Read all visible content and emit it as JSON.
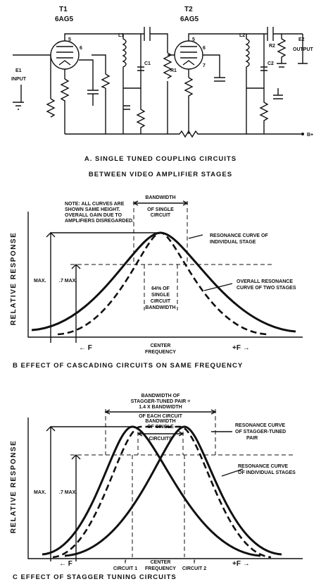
{
  "part_a": {
    "tube_1": {
      "name": "T1",
      "type": "6AG5"
    },
    "tube_2": {
      "name": "T2",
      "type": "6AG5"
    },
    "components": [
      "L1",
      "C1",
      "R1",
      "L2",
      "C2",
      "R2"
    ],
    "input": [
      "E1",
      "INPUT"
    ],
    "output": [
      "E2",
      "OUTPUT"
    ],
    "supply": "B+",
    "pins": [
      "5",
      "6",
      "5",
      "6",
      "7"
    ],
    "caption": [
      "A. SINGLE TUNED COUPLING CIRCUITS",
      "BETWEEN VIDEO AMPLIFIER STAGES"
    ]
  },
  "part_b": {
    "note": [
      "NOTE: ALL CURVES ARE",
      "SHOWN SAME HEIGHT.",
      "OVERALL GAIN DUE TO",
      "AMPLIFIERS DISREGARDED."
    ],
    "bandwidth_label": [
      "BANDWIDTH",
      "OF SINGLE",
      "CIRCUIT"
    ],
    "individual_label": [
      "RESONANCE CURVE OF",
      "INDIVIDUAL STAGE"
    ],
    "overall_label": [
      "OVERALL RESONANCE",
      "CURVE OF TWO STAGES"
    ],
    "percent_label": [
      "64% OF",
      "SINGLE",
      "CIRCUIT",
      "BANDWIDTH"
    ],
    "y_axis": "RELATIVE RESPONSE",
    "max": "MAX.",
    "seven_max": ".7 MAX.",
    "minus_f": "← F",
    "center": [
      "CENTER",
      "FREQUENCY"
    ],
    "plus_f": "+F →",
    "caption": "B  EFFECT OF CASCADING CIRCUITS ON SAME FREQUENCY"
  },
  "part_c": {
    "pair_bandwidth_label": [
      "BANDWIDTH OF",
      "STAGGER-TUNED PAIR =",
      "1.4 X BANDWIDTH",
      "OF EACH CIRCUIT"
    ],
    "single_bandwidth_label": [
      "BANDWIDTH",
      "OF SINGLE",
      "CIRCUITS"
    ],
    "pair_label": [
      "RESONANCE CURVE",
      "OF STAGGER-TUNED",
      "PAIR"
    ],
    "individual_label": [
      "RESONANCE CURVE",
      "OF INDIVIDUAL STAGES"
    ],
    "y_axis": "RELATIVE RESPONSE",
    "max": "MAX.",
    "seven_max": ".7 MAX.",
    "minus_f": "← F",
    "circuit_1": [
      "f",
      "CIRCUIT 1"
    ],
    "center": [
      "CENTER",
      "FREQUENCY"
    ],
    "circuit_2": [
      "f",
      "CIRCUIT 2"
    ],
    "plus_f": "+F →",
    "caption": "C  EFFECT OF STAGGER TUNING CIRCUITS"
  }
}
